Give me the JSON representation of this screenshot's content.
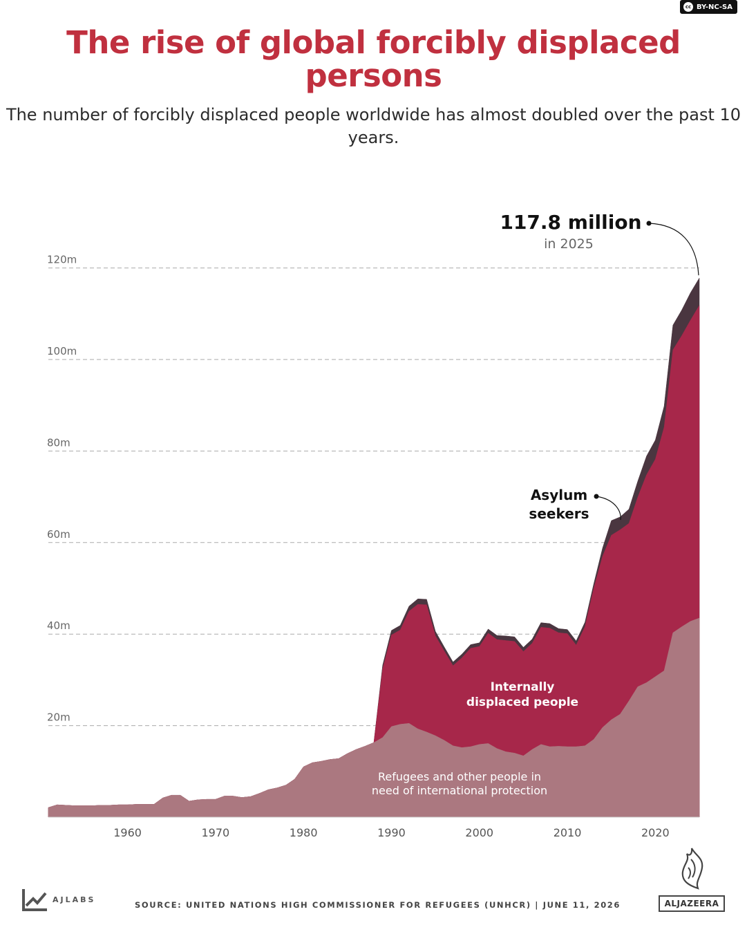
{
  "license_badge": "BY-NC-SA",
  "license_cc": "cc",
  "title": "The rise of global forcibly displaced persons",
  "subtitle": "The number of forcibly displaced people worldwide has almost doubled over the past 10 years.",
  "colors": {
    "title": "#c0303f",
    "refugees": "#ab7880",
    "idp": "#a7274a",
    "asylum": "#4a3640",
    "grid": "#aaaaaa"
  },
  "callout": {
    "value": "117.8 million",
    "sub": "in 2025"
  },
  "chart_data": {
    "type": "area",
    "stacked": true,
    "x": [
      1951,
      1952,
      1953,
      1954,
      1955,
      1956,
      1957,
      1958,
      1959,
      1960,
      1961,
      1962,
      1963,
      1964,
      1965,
      1966,
      1967,
      1968,
      1969,
      1970,
      1971,
      1972,
      1973,
      1974,
      1975,
      1976,
      1977,
      1978,
      1979,
      1980,
      1981,
      1982,
      1983,
      1984,
      1985,
      1986,
      1987,
      1988,
      1989,
      1990,
      1991,
      1992,
      1993,
      1994,
      1995,
      1996,
      1997,
      1998,
      1999,
      2000,
      2001,
      2002,
      2003,
      2004,
      2005,
      2006,
      2007,
      2008,
      2009,
      2010,
      2011,
      2012,
      2013,
      2014,
      2015,
      2016,
      2017,
      2018,
      2019,
      2020,
      2021,
      2022,
      2023,
      2024,
      2025
    ],
    "series": [
      {
        "name": "Refugees and other people in need of international protection",
        "key": "refugees",
        "values": [
          2.1,
          2.7,
          2.6,
          2.5,
          2.5,
          2.5,
          2.6,
          2.6,
          2.7,
          2.7,
          2.8,
          2.8,
          2.8,
          4.2,
          4.8,
          4.8,
          3.5,
          3.8,
          3.9,
          3.9,
          4.6,
          4.6,
          4.3,
          4.5,
          5.2,
          6.0,
          6.4,
          7.0,
          8.3,
          11.0,
          11.9,
          12.2,
          12.6,
          12.8,
          13.9,
          14.8,
          15.5,
          16.3,
          17.4,
          19.8,
          20.3,
          20.5,
          19.3,
          18.6,
          17.8,
          16.8,
          15.6,
          15.2,
          15.4,
          15.9,
          16.1,
          15.0,
          14.3,
          14.0,
          13.4,
          14.8,
          15.9,
          15.4,
          15.5,
          15.4,
          15.4,
          15.6,
          17.0,
          19.6,
          21.3,
          22.5,
          25.4,
          28.5,
          29.4,
          30.7,
          32.0,
          40.3,
          41.6,
          42.8,
          43.5
        ]
      },
      {
        "name": "Internally displaced people",
        "key": "idp",
        "values": [
          0,
          0,
          0,
          0,
          0,
          0,
          0,
          0,
          0,
          0,
          0,
          0,
          0,
          0,
          0,
          0,
          0,
          0,
          0,
          0,
          0,
          0,
          0,
          0,
          0,
          0,
          0,
          0,
          0,
          0,
          0,
          0,
          0,
          0,
          0,
          0,
          0,
          0,
          15.0,
          20.0,
          20.6,
          24.5,
          27.2,
          27.8,
          21.8,
          19.5,
          17.5,
          19.6,
          21.5,
          21.4,
          24.1,
          23.8,
          24.3,
          24.4,
          22.8,
          23.2,
          25.6,
          25.9,
          24.8,
          24.7,
          22.2,
          26.0,
          33.0,
          37.4,
          40.3,
          40.3,
          38.8,
          41.4,
          45.4,
          47.5,
          53.2,
          61.8,
          63.6,
          65.8,
          68.3
        ]
      },
      {
        "name": "Asylum seekers",
        "key": "asylum",
        "values": [
          0,
          0,
          0,
          0,
          0,
          0,
          0,
          0,
          0,
          0,
          0,
          0,
          0,
          0,
          0,
          0,
          0,
          0,
          0,
          0,
          0,
          0,
          0,
          0,
          0,
          0,
          0,
          0,
          0,
          0,
          0,
          0,
          0,
          0,
          0,
          0,
          0,
          0,
          0.8,
          1.0,
          1.0,
          1.1,
          1.2,
          1.2,
          1.0,
          0.9,
          0.8,
          0.8,
          0.8,
          0.8,
          0.9,
          0.9,
          1.0,
          1.0,
          0.9,
          0.9,
          1.0,
          1.0,
          0.9,
          0.9,
          0.9,
          1.0,
          1.0,
          1.8,
          3.2,
          2.8,
          3.1,
          3.5,
          4.1,
          4.2,
          4.6,
          5.4,
          5.6,
          6.0,
          6.0
        ]
      }
    ],
    "series_labels": {
      "refugees": "Refugees and other people in need of international protection",
      "idp": "Internally displaced people",
      "asylum": "Asylum seekers"
    },
    "y_ticks": [
      "20m",
      "40m",
      "60m",
      "80m",
      "100m",
      "120m"
    ],
    "y_tick_values": [
      20,
      40,
      60,
      80,
      100,
      120
    ],
    "x_ticks": [
      1960,
      1970,
      1980,
      1990,
      2000,
      2010,
      2020
    ],
    "ylim": [
      0,
      120
    ],
    "xlim": [
      1951,
      2025
    ],
    "grid": true
  },
  "footer": {
    "source": "SOURCE: UNITED NATIONS HIGH COMMISSIONER FOR REFUGEES (UNHCR)  |  JUNE 11, 2026",
    "lab": "AJLABS",
    "brand": "ALJAZEERA"
  }
}
